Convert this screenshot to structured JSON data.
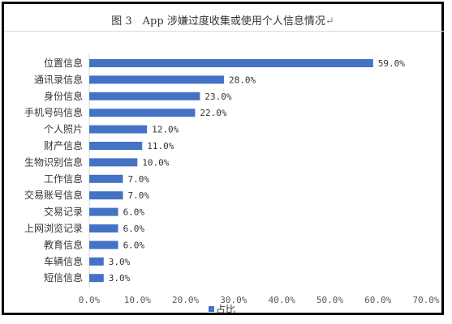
{
  "chart_data": {
    "type": "bar",
    "orientation": "horizontal",
    "title": "图 3　App 涉嫌过度收集或使用个人信息情况",
    "title_mark": "↵",
    "categories": [
      "位置信息",
      "通讯录信息",
      "身份信息",
      "手机号码信息",
      "个人照片",
      "财产信息",
      "生物识别信息",
      "工作信息",
      "交易账号信息",
      "交易记录",
      "上网浏览记录",
      "教育信息",
      "车辆信息",
      "短信信息"
    ],
    "values": [
      59.0,
      28.0,
      23.0,
      22.0,
      12.0,
      11.0,
      10.0,
      7.0,
      7.0,
      6.0,
      6.0,
      6.0,
      3.0,
      3.0
    ],
    "value_labels": [
      "59.0%",
      "28.0%",
      "23.0%",
      "22.0%",
      "12.0%",
      "11.0%",
      "10.0%",
      "7.0%",
      "7.0%",
      "6.0%",
      "6.0%",
      "6.0%",
      "3.0%",
      "3.0%"
    ],
    "series": [
      {
        "name": "占比",
        "values": [
          59.0,
          28.0,
          23.0,
          22.0,
          12.0,
          11.0,
          10.0,
          7.0,
          7.0,
          6.0,
          6.0,
          6.0,
          3.0,
          3.0
        ]
      }
    ],
    "xlim": [
      0,
      70
    ],
    "xticks": [
      "0.0%",
      "10.0%",
      "20.0%",
      "30.0%",
      "40.0%",
      "50.0%",
      "60.0%",
      "70.0%"
    ],
    "grid": false,
    "legend_position": "bottom",
    "bar_color": "#4472c4"
  }
}
